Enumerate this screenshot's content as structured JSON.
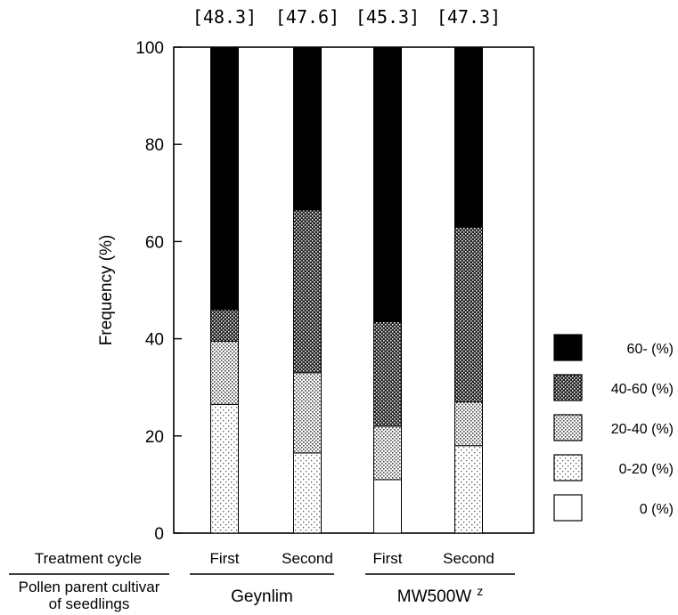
{
  "chart_data": {
    "type": "bar",
    "stacked": true,
    "ylabel": "Frequency (%)",
    "ylim": [
      0,
      100
    ],
    "yticks": [
      "0",
      "20",
      "40",
      "60",
      "80",
      "100"
    ],
    "grid": false,
    "legend_placement": "right",
    "categories": [
      "First",
      "Second",
      "First",
      "Second"
    ],
    "group_labels": [
      "Geynlim",
      "MW500W",
      "MW500W"
    ],
    "group_label_superscript": "z",
    "row_labels": {
      "treatment_cycle": "Treatment cycle",
      "pollen_parent_line1": "Pollen parent cultivar",
      "pollen_parent_line2": "of seedlings"
    },
    "bar_annotations": [
      "[48.3]",
      "[47.6]",
      "[45.3]",
      "[47.3]"
    ],
    "series": [
      {
        "name": "0 (%)",
        "values": [
          0,
          0,
          11,
          0
        ],
        "color": "#ffffff",
        "pattern": "none"
      },
      {
        "name": "0-20 (%)",
        "values": [
          26.5,
          16.5,
          0,
          18
        ],
        "color": "#f4f4f4",
        "pattern": "sparse-dots"
      },
      {
        "name": "20-40 (%)",
        "values": [
          13,
          16.5,
          11,
          9
        ],
        "color": "#d8d8d8",
        "pattern": "medium-dots"
      },
      {
        "name": "40-60 (%)",
        "values": [
          6.5,
          33.5,
          21.5,
          36
        ],
        "color": "#6a6a6a",
        "pattern": "dense-dots"
      },
      {
        "name": "60- (%)",
        "values": [
          54,
          33.5,
          56.5,
          37
        ],
        "color": "#000000",
        "pattern": "solid"
      }
    ]
  }
}
